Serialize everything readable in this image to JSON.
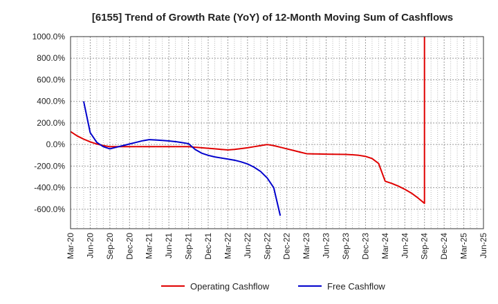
{
  "chart_data": {
    "type": "line",
    "title": "[6155]  Trend of Growth Rate (YoY) of 12-Month Moving Sum of Cashflows",
    "xlabel": "",
    "ylabel": "",
    "x_ticks": [
      "Mar-20",
      "Jun-20",
      "Sep-20",
      "Dec-20",
      "Mar-21",
      "Jun-21",
      "Sep-21",
      "Dec-21",
      "Mar-22",
      "Jun-22",
      "Sep-22",
      "Dec-22",
      "Mar-23",
      "Jun-23",
      "Sep-23",
      "Dec-23",
      "Mar-24",
      "Jun-24",
      "Sep-24",
      "Dec-24",
      "Mar-25",
      "Jun-25"
    ],
    "y_ticks": [
      "1000.0%",
      "800.0%",
      "600.0%",
      "400.0%",
      "200.0%",
      "0.0%",
      "-200.0%",
      "-400.0%",
      "-600.0%"
    ],
    "y_tick_values": [
      1000,
      800,
      600,
      400,
      200,
      0,
      -200,
      -400,
      -600
    ],
    "ylim": [
      -780,
      1000
    ],
    "grid": true,
    "legend_position": "bottom",
    "series": [
      {
        "name": "Operating Cashflow",
        "color": "#e00000",
        "points": [
          [
            "2020-03",
            120
          ],
          [
            "2020-04",
            80
          ],
          [
            "2020-05",
            50
          ],
          [
            "2020-06",
            25
          ],
          [
            "2020-07",
            5
          ],
          [
            "2020-08",
            -10
          ],
          [
            "2020-09",
            -20
          ],
          [
            "2020-10",
            -20
          ],
          [
            "2020-11",
            -20
          ],
          [
            "2020-12",
            -20
          ],
          [
            "2021-01",
            -20
          ],
          [
            "2021-02",
            -20
          ],
          [
            "2021-03",
            -20
          ],
          [
            "2021-04",
            -20
          ],
          [
            "2021-05",
            -20
          ],
          [
            "2021-06",
            -20
          ],
          [
            "2021-07",
            -20
          ],
          [
            "2021-08",
            -20
          ],
          [
            "2021-09",
            -20
          ],
          [
            "2021-10",
            -25
          ],
          [
            "2021-11",
            -30
          ],
          [
            "2021-12",
            -35
          ],
          [
            "2022-01",
            -40
          ],
          [
            "2022-02",
            -45
          ],
          [
            "2022-03",
            -50
          ],
          [
            "2022-04",
            -45
          ],
          [
            "2022-05",
            -38
          ],
          [
            "2022-06",
            -30
          ],
          [
            "2022-07",
            -20
          ],
          [
            "2022-08",
            -10
          ],
          [
            "2022-09",
            0
          ],
          [
            "2022-10",
            -10
          ],
          [
            "2022-11",
            -25
          ],
          [
            "2022-12",
            -40
          ],
          [
            "2023-01",
            -55
          ],
          [
            "2023-02",
            -70
          ],
          [
            "2023-03",
            -85
          ],
          [
            "2023-04",
            -87
          ],
          [
            "2023-05",
            -88
          ],
          [
            "2023-06",
            -89
          ],
          [
            "2023-07",
            -90
          ],
          [
            "2023-08",
            -91
          ],
          [
            "2023-09",
            -92
          ],
          [
            "2023-10",
            -95
          ],
          [
            "2023-11",
            -100
          ],
          [
            "2023-12",
            -110
          ],
          [
            "2024-01",
            -130
          ],
          [
            "2024-02",
            -175
          ],
          [
            "2024-03",
            -340
          ],
          [
            "2024-04",
            -360
          ],
          [
            "2024-05",
            -385
          ],
          [
            "2024-06",
            -415
          ],
          [
            "2024-07",
            -450
          ],
          [
            "2024-08",
            -495
          ],
          [
            "2024-09",
            -545
          ],
          [
            "2024-09",
            1000
          ]
        ]
      },
      {
        "name": "Free Cashflow",
        "color": "#0000cc",
        "points": [
          [
            "2020-05",
            400
          ],
          [
            "2020-06",
            110
          ],
          [
            "2020-07",
            20
          ],
          [
            "2020-08",
            -20
          ],
          [
            "2020-09",
            -40
          ],
          [
            "2020-10",
            -25
          ],
          [
            "2020-11",
            -10
          ],
          [
            "2020-12",
            5
          ],
          [
            "2021-01",
            20
          ],
          [
            "2021-02",
            35
          ],
          [
            "2021-03",
            45
          ],
          [
            "2021-04",
            42
          ],
          [
            "2021-05",
            38
          ],
          [
            "2021-06",
            33
          ],
          [
            "2021-07",
            27
          ],
          [
            "2021-08",
            18
          ],
          [
            "2021-09",
            8
          ],
          [
            "2021-10",
            -45
          ],
          [
            "2021-11",
            -80
          ],
          [
            "2021-12",
            -100
          ],
          [
            "2022-01",
            -115
          ],
          [
            "2022-02",
            -125
          ],
          [
            "2022-03",
            -135
          ],
          [
            "2022-04",
            -145
          ],
          [
            "2022-05",
            -160
          ],
          [
            "2022-06",
            -180
          ],
          [
            "2022-07",
            -210
          ],
          [
            "2022-08",
            -250
          ],
          [
            "2022-09",
            -310
          ],
          [
            "2022-10",
            -400
          ],
          [
            "2022-11",
            -660
          ]
        ]
      }
    ]
  }
}
